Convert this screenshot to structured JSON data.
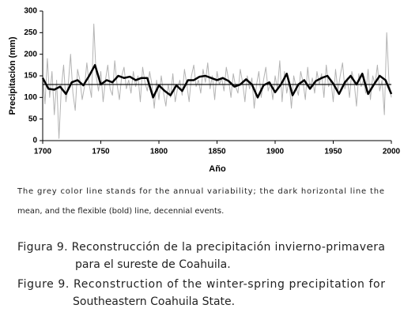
{
  "chart_data": {
    "type": "line",
    "ylabel": "Precipitación (mm)",
    "xlabel": "Año",
    "xlim": [
      1700,
      2000
    ],
    "xticks": [
      1700,
      1750,
      1800,
      1850,
      1900,
      1950,
      2000
    ],
    "ylim": [
      0,
      300
    ],
    "yticks": [
      0,
      50,
      100,
      150,
      200,
      250,
      300
    ],
    "series": [
      {
        "color": "#b3b3b3",
        "width": 1,
        "x": [
          1700,
          1702,
          1704,
          1706,
          1708,
          1710,
          1712,
          1714,
          1716,
          1718,
          1720,
          1722,
          1724,
          1726,
          1728,
          1730,
          1732,
          1734,
          1736,
          1738,
          1740,
          1742,
          1744,
          1746,
          1748,
          1750,
          1752,
          1754,
          1756,
          1758,
          1760,
          1762,
          1764,
          1766,
          1768,
          1770,
          1772,
          1774,
          1776,
          1778,
          1780,
          1782,
          1784,
          1786,
          1788,
          1790,
          1792,
          1794,
          1796,
          1798,
          1800,
          1802,
          1804,
          1806,
          1808,
          1810,
          1812,
          1814,
          1816,
          1818,
          1820,
          1822,
          1824,
          1826,
          1828,
          1830,
          1832,
          1834,
          1836,
          1838,
          1840,
          1842,
          1844,
          1846,
          1848,
          1850,
          1852,
          1854,
          1856,
          1858,
          1860,
          1862,
          1864,
          1866,
          1868,
          1870,
          1872,
          1874,
          1876,
          1878,
          1880,
          1882,
          1884,
          1886,
          1888,
          1890,
          1892,
          1894,
          1896,
          1898,
          1900,
          1902,
          1904,
          1906,
          1908,
          1910,
          1912,
          1914,
          1916,
          1918,
          1920,
          1922,
          1924,
          1926,
          1928,
          1930,
          1932,
          1934,
          1936,
          1938,
          1940,
          1942,
          1944,
          1946,
          1948,
          1950,
          1952,
          1954,
          1956,
          1958,
          1960,
          1962,
          1964,
          1966,
          1968,
          1970,
          1972,
          1974,
          1976,
          1978,
          1980,
          1982,
          1984,
          1986,
          1988,
          1990,
          1992,
          1994,
          1996,
          1998,
          2000
        ],
        "values": [
          150,
          85,
          190,
          100,
          160,
          60,
          140,
          5,
          120,
          175,
          90,
          130,
          200,
          110,
          70,
          165,
          140,
          95,
          125,
          180,
          130,
          100,
          270,
          150,
          115,
          160,
          90,
          140,
          175,
          120,
          105,
          185,
          130,
          95,
          150,
          170,
          120,
          140,
          110,
          160,
          125,
          150,
          90,
          170,
          135,
          115,
          160,
          130,
          75,
          140,
          95,
          150,
          110,
          80,
          130,
          100,
          155,
          90,
          120,
          140,
          105,
          165,
          130,
          90,
          150,
          175,
          125,
          140,
          110,
          165,
          135,
          180,
          120,
          150,
          95,
          160,
          130,
          145,
          115,
          170,
          140,
          100,
          155,
          125,
          110,
          165,
          135,
          90,
          150,
          120,
          145,
          75,
          130,
          160,
          100,
          140,
          170,
          115,
          135,
          95,
          150,
          120,
          185,
          90,
          160,
          110,
          140,
          75,
          150,
          125,
          105,
          160,
          135,
          95,
          170,
          120,
          145,
          110,
          160,
          130,
          155,
          100,
          175,
          125,
          140,
          90,
          165,
          115,
          150,
          180,
          120,
          145,
          100,
          160,
          135,
          80,
          155,
          125,
          140,
          110,
          165,
          95,
          150,
          130,
          175,
          115,
          140,
          60,
          250,
          135,
          100
        ]
      },
      {
        "color": "#000000",
        "width": 2.5,
        "x": [
          1700,
          1705,
          1710,
          1715,
          1720,
          1725,
          1730,
          1735,
          1740,
          1745,
          1750,
          1755,
          1760,
          1765,
          1770,
          1775,
          1780,
          1785,
          1790,
          1795,
          1800,
          1805,
          1810,
          1815,
          1820,
          1825,
          1830,
          1835,
          1840,
          1845,
          1850,
          1855,
          1860,
          1865,
          1870,
          1875,
          1880,
          1885,
          1890,
          1895,
          1900,
          1905,
          1910,
          1915,
          1920,
          1925,
          1930,
          1935,
          1940,
          1945,
          1950,
          1955,
          1960,
          1965,
          1970,
          1975,
          1980,
          1985,
          1990,
          1995,
          2000
        ],
        "values": [
          145,
          120,
          118,
          125,
          108,
          135,
          140,
          128,
          150,
          175,
          130,
          140,
          135,
          150,
          145,
          148,
          140,
          145,
          145,
          100,
          128,
          115,
          105,
          128,
          115,
          140,
          140,
          148,
          150,
          145,
          140,
          145,
          138,
          125,
          130,
          142,
          130,
          100,
          128,
          135,
          112,
          130,
          155,
          105,
          130,
          140,
          120,
          138,
          145,
          150,
          132,
          108,
          135,
          150,
          130,
          155,
          108,
          130,
          150,
          140,
          108
        ]
      },
      {
        "color": "#000000",
        "width": 1.2,
        "x": [
          1700,
          2000
        ],
        "values": [
          130,
          130
        ]
      }
    ]
  },
  "caption_note_lines": [
    "The grey color line stands for the annual variability; the dark horizontal line the",
    "mean, and the flexible (bold) line, decennial events."
  ],
  "figure_caption_es": [
    "Figura 9. Reconstrucción de la precipitación invierno-primavera",
    "para el sureste de Coahuila."
  ],
  "figure_caption_en": [
    "Figure 9. Reconstruction of the winter-spring precipitation for",
    "Southeastern Coahuila State."
  ]
}
